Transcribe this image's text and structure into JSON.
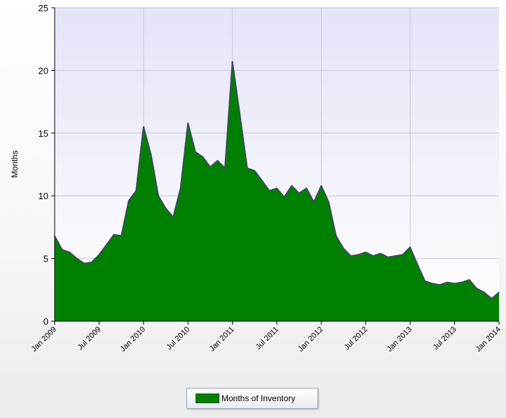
{
  "chart_data": {
    "type": "area",
    "ylabel": "Months",
    "xlabel": "",
    "ylim": [
      0,
      25
    ],
    "yticks": [
      0,
      5,
      10,
      15,
      20,
      25
    ],
    "xlim": [
      "2009-01",
      "2014-01"
    ],
    "xticks": [
      "Jan 2009",
      "Jul 2009",
      "Jan 2010",
      "Jul 2010",
      "Jan 2011",
      "Jul 2011",
      "Jan 2012",
      "Jul 2012",
      "Jan 2013",
      "Jul 2013",
      "Jan 2014"
    ],
    "grid": true,
    "legend_position": "bottom",
    "colors": {
      "fill": "#008000",
      "outline": "#3b4a5a",
      "plot_bg_top": "#e6e6fa",
      "plot_bg_bottom": "#ffffff",
      "grid": "#c8c8d8"
    },
    "series": [
      {
        "name": "Months of Inventory",
        "x": [
          "2009-01",
          "2009-02",
          "2009-03",
          "2009-04",
          "2009-05",
          "2009-06",
          "2009-07",
          "2009-08",
          "2009-09",
          "2009-10",
          "2009-11",
          "2009-12",
          "2010-01",
          "2010-02",
          "2010-03",
          "2010-04",
          "2010-05",
          "2010-06",
          "2010-07",
          "2010-08",
          "2010-09",
          "2010-10",
          "2010-11",
          "2010-12",
          "2011-01",
          "2011-02",
          "2011-03",
          "2011-04",
          "2011-05",
          "2011-06",
          "2011-07",
          "2011-08",
          "2011-09",
          "2011-10",
          "2011-11",
          "2011-12",
          "2012-01",
          "2012-02",
          "2012-03",
          "2012-04",
          "2012-05",
          "2012-06",
          "2012-07",
          "2012-08",
          "2012-09",
          "2012-10",
          "2012-11",
          "2012-12",
          "2013-01",
          "2013-02",
          "2013-03",
          "2013-04",
          "2013-05",
          "2013-06",
          "2013-07",
          "2013-08",
          "2013-09",
          "2013-10",
          "2013-11",
          "2013-12",
          "2014-01"
        ],
        "values": [
          6.8,
          5.7,
          5.5,
          5.0,
          4.6,
          4.7,
          5.3,
          6.1,
          6.9,
          6.8,
          9.6,
          10.4,
          15.5,
          13.3,
          10.0,
          9.0,
          8.3,
          10.6,
          15.8,
          13.5,
          13.1,
          12.3,
          12.8,
          12.2,
          20.7,
          16.5,
          12.2,
          12.0,
          11.2,
          10.4,
          10.6,
          9.9,
          10.8,
          10.2,
          10.6,
          9.5,
          10.8,
          9.5,
          6.8,
          5.8,
          5.2,
          5.3,
          5.5,
          5.2,
          5.4,
          5.1,
          5.2,
          5.3,
          5.9,
          4.5,
          3.2,
          3.0,
          2.9,
          3.1,
          3.0,
          3.1,
          3.3,
          2.6,
          2.3,
          1.8,
          2.3
        ]
      }
    ]
  }
}
